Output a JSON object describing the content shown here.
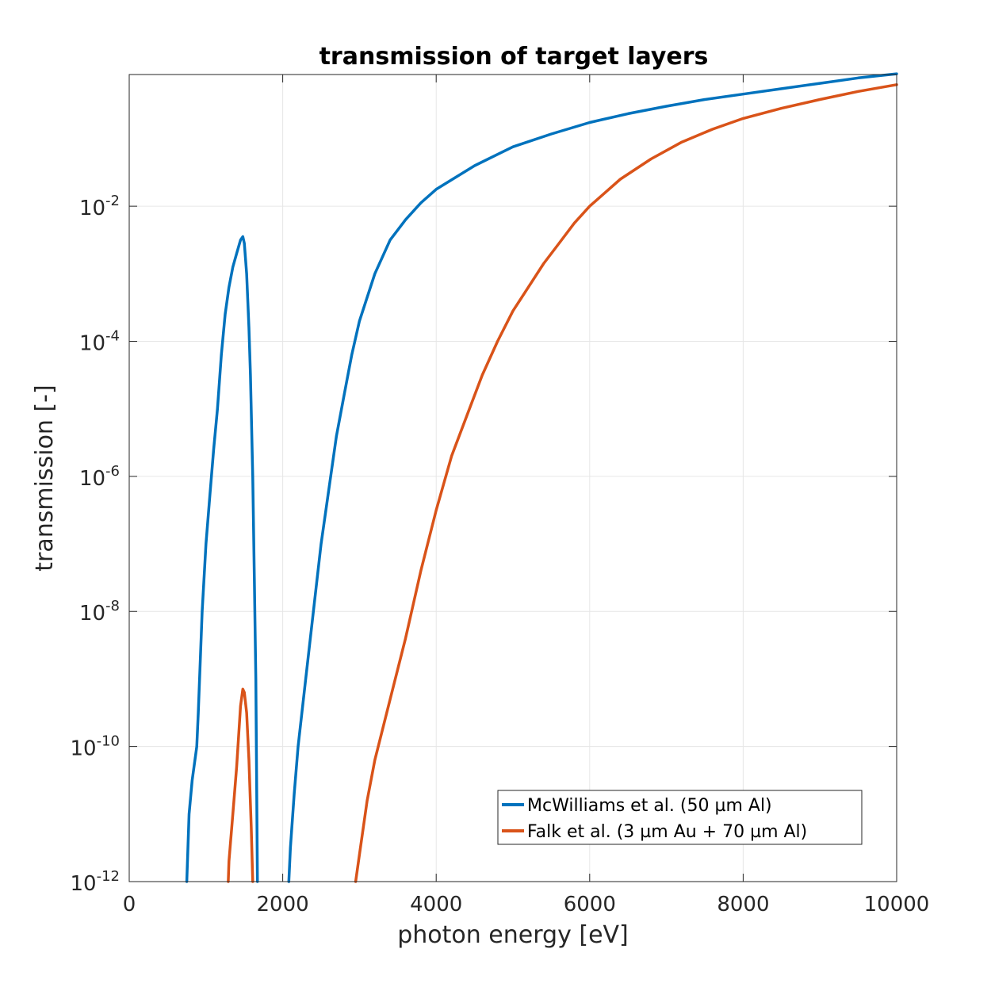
{
  "chart_data": {
    "type": "line",
    "title": "transmission of target layers",
    "xlabel": "photon energy [eV]",
    "ylabel": "transmission [-]",
    "xlim": [
      0,
      10000
    ],
    "ylim_log10": [
      -12,
      -0.05
    ],
    "yscale": "log",
    "grid": true,
    "legend_position": "lower-right",
    "x_ticks": [
      0,
      2000,
      4000,
      6000,
      8000,
      10000
    ],
    "x_tick_labels": [
      "0",
      "2000",
      "4000",
      "6000",
      "8000",
      "10000"
    ],
    "y_ticks": [
      {
        "base": "10",
        "exp": "-12",
        "value": -12
      },
      {
        "base": "10",
        "exp": "-10",
        "value": -10
      },
      {
        "base": "10",
        "exp": "-8",
        "value": -8
      },
      {
        "base": "10",
        "exp": "-6",
        "value": -6
      },
      {
        "base": "10",
        "exp": "-4",
        "value": -4
      },
      {
        "base": "10",
        "exp": "-2",
        "value": -2
      }
    ],
    "series": [
      {
        "name": "McWilliams et al. (50 µm Al)",
        "color": "#0072BD",
        "segments": [
          [
            [
              750,
              -12
            ],
            [
              780,
              -11
            ],
            [
              820,
              -10.5
            ],
            [
              880,
              -10
            ],
            [
              900,
              -9.5
            ],
            [
              950,
              -8
            ],
            [
              1000,
              -7
            ],
            [
              1050,
              -6.3
            ],
            [
              1100,
              -5.6
            ],
            [
              1150,
              -5
            ],
            [
              1200,
              -4.2
            ],
            [
              1250,
              -3.6
            ],
            [
              1300,
              -3.2
            ],
            [
              1350,
              -2.9
            ],
            [
              1400,
              -2.7
            ],
            [
              1450,
              -2.5
            ],
            [
              1480,
              -2.45
            ],
            [
              1500,
              -2.55
            ],
            [
              1530,
              -3.0
            ],
            [
              1560,
              -3.8
            ],
            [
              1580,
              -4.5
            ],
            [
              1610,
              -6
            ],
            [
              1630,
              -7.5
            ],
            [
              1650,
              -9
            ],
            [
              1670,
              -12
            ]
          ],
          [
            [
              2080,
              -12
            ],
            [
              2100,
              -11.5
            ],
            [
              2150,
              -10.7
            ],
            [
              2200,
              -10
            ],
            [
              2300,
              -9
            ],
            [
              2400,
              -8
            ],
            [
              2500,
              -7
            ],
            [
              2600,
              -6.2
            ],
            [
              2700,
              -5.4
            ],
            [
              2800,
              -4.8
            ],
            [
              2900,
              -4.2
            ],
            [
              3000,
              -3.7
            ],
            [
              3200,
              -3.0
            ],
            [
              3400,
              -2.5
            ],
            [
              3600,
              -2.2
            ],
            [
              3800,
              -1.95
            ],
            [
              4000,
              -1.75
            ],
            [
              4500,
              -1.4
            ],
            [
              5000,
              -1.12
            ],
            [
              5500,
              -0.93
            ],
            [
              6000,
              -0.76
            ],
            [
              6500,
              -0.63
            ],
            [
              7000,
              -0.52
            ],
            [
              7500,
              -0.42
            ],
            [
              8000,
              -0.34
            ],
            [
              8500,
              -0.26
            ],
            [
              9000,
              -0.18
            ],
            [
              9500,
              -0.1
            ],
            [
              10000,
              -0.04
            ]
          ]
        ]
      },
      {
        "name": "Falk et al. (3 µm Au + 70 µm Al)",
        "color": "#D95319",
        "segments": [
          [
            [
              1290,
              -12
            ],
            [
              1300,
              -11.7
            ],
            [
              1350,
              -11
            ],
            [
              1400,
              -10.3
            ],
            [
              1450,
              -9.4
            ],
            [
              1480,
              -9.15
            ],
            [
              1500,
              -9.2
            ],
            [
              1530,
              -9.5
            ],
            [
              1560,
              -10.2
            ],
            [
              1590,
              -11.2
            ],
            [
              1610,
              -12
            ]
          ],
          [
            [
              2950,
              -12
            ],
            [
              3000,
              -11.6
            ],
            [
              3100,
              -10.8
            ],
            [
              3200,
              -10.2
            ],
            [
              3400,
              -9.3
            ],
            [
              3600,
              -8.4
            ],
            [
              3800,
              -7.4
            ],
            [
              4000,
              -6.5
            ],
            [
              4200,
              -5.7
            ],
            [
              4400,
              -5.1
            ],
            [
              4600,
              -4.5
            ],
            [
              4800,
              -4.0
            ],
            [
              5000,
              -3.55
            ],
            [
              5200,
              -3.2
            ],
            [
              5400,
              -2.85
            ],
            [
              5600,
              -2.55
            ],
            [
              5800,
              -2.25
            ],
            [
              6000,
              -2.0
            ],
            [
              6400,
              -1.6
            ],
            [
              6800,
              -1.3
            ],
            [
              7200,
              -1.05
            ],
            [
              7600,
              -0.86
            ],
            [
              8000,
              -0.7
            ],
            [
              8500,
              -0.55
            ],
            [
              9000,
              -0.42
            ],
            [
              9500,
              -0.3
            ],
            [
              10000,
              -0.2
            ]
          ]
        ]
      }
    ]
  }
}
